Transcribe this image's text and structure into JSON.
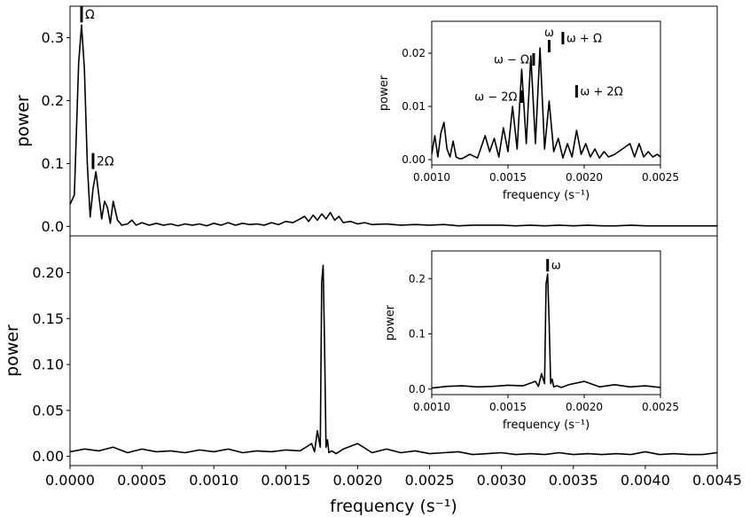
{
  "chart_data": [
    {
      "type": "line",
      "panel": "top",
      "xlabel": "",
      "ylabel": "power",
      "xlim": [
        0.0,
        0.0045
      ],
      "ylim": [
        -0.015,
        0.35
      ],
      "yticks": [
        0.0,
        0.1,
        0.2,
        0.3
      ],
      "ytick_labels": [
        "0.0",
        "0.1",
        "0.2",
        "0.3"
      ],
      "series": [
        {
          "x": [
            0.0,
            3e-05,
            6e-05,
            8e-05,
            0.0001,
            0.00012,
            0.00014,
            0.00016,
            0.00018,
            0.0002,
            0.00022,
            0.00024,
            0.00026,
            0.00028,
            0.0003,
            0.00033,
            0.00036,
            0.0004,
            0.00043,
            0.00046,
            0.0005,
            0.00055,
            0.0006,
            0.00065,
            0.0007,
            0.00075,
            0.0008,
            0.00085,
            0.0009,
            0.00095,
            0.001,
            0.00105,
            0.0011,
            0.00115,
            0.0012,
            0.00125,
            0.0013,
            0.00135,
            0.0014,
            0.00145,
            0.0015,
            0.00155,
            0.0016,
            0.00163,
            0.00166,
            0.00169,
            0.00172,
            0.00175,
            0.00178,
            0.00181,
            0.00184,
            0.00187,
            0.0019,
            0.00195,
            0.002,
            0.00205,
            0.0021,
            0.0022,
            0.0023,
            0.0024,
            0.0025,
            0.0026,
            0.0027,
            0.0028,
            0.0029,
            0.003,
            0.0031,
            0.0032,
            0.0033,
            0.0034,
            0.0035,
            0.0036,
            0.0037,
            0.0038,
            0.0039,
            0.004,
            0.0041,
            0.0042,
            0.0043,
            0.0044,
            0.0045
          ],
          "y": [
            0.035,
            0.05,
            0.26,
            0.32,
            0.25,
            0.1,
            0.015,
            0.06,
            0.087,
            0.05,
            0.012,
            0.04,
            0.03,
            0.005,
            0.04,
            0.01,
            0.002,
            0.004,
            0.01,
            0.002,
            0.006,
            0.002,
            0.005,
            0.002,
            0.004,
            0.001,
            0.004,
            0.002,
            0.004,
            0.001,
            0.005,
            0.002,
            0.006,
            0.002,
            0.005,
            0.003,
            0.004,
            0.002,
            0.006,
            0.003,
            0.008,
            0.006,
            0.012,
            0.016,
            0.008,
            0.018,
            0.01,
            0.02,
            0.012,
            0.022,
            0.01,
            0.016,
            0.006,
            0.008,
            0.004,
            0.006,
            0.003,
            0.004,
            0.002,
            0.003,
            0.002,
            0.003,
            0.001,
            0.002,
            0.002,
            0.002,
            0.001,
            0.002,
            0.001,
            0.002,
            0.001,
            0.002,
            0.001,
            0.001,
            0.002,
            0.001,
            0.001,
            0.001,
            0.001,
            0.001,
            0.001
          ]
        }
      ],
      "annotations": [
        {
          "text": "Ω",
          "x": 8e-05,
          "y": 0.32
        },
        {
          "text": "2Ω",
          "x": 0.00016,
          "y": 0.087
        }
      ],
      "inset": {
        "xlabel": "frequency (s⁻¹)",
        "ylabel": "power",
        "xlim": [
          0.001,
          0.0025
        ],
        "ylim": [
          -0.001,
          0.026
        ],
        "xticks": [
          0.001,
          0.0015,
          0.002,
          0.0025
        ],
        "xtick_labels": [
          "0.0010",
          "0.0015",
          "0.0020",
          "0.0025"
        ],
        "yticks": [
          0.0,
          0.01,
          0.02
        ],
        "ytick_labels": [
          "0.00",
          "0.01",
          "0.02"
        ],
        "series": [
          {
            "x": [
              0.001,
              0.00102,
              0.00104,
              0.00106,
              0.00108,
              0.0011,
              0.00112,
              0.00114,
              0.00116,
              0.00118,
              0.0012,
              0.00125,
              0.0013,
              0.00135,
              0.00138,
              0.00141,
              0.00144,
              0.00147,
              0.0015,
              0.00153,
              0.00156,
              0.00159,
              0.00162,
              0.00165,
              0.00168,
              0.00171,
              0.00174,
              0.00177,
              0.0018,
              0.00183,
              0.00186,
              0.00189,
              0.00192,
              0.00195,
              0.00198,
              0.00201,
              0.00204,
              0.00207,
              0.0021,
              0.00213,
              0.00216,
              0.0022,
              0.00225,
              0.0023,
              0.00233,
              0.00236,
              0.00239,
              0.00242,
              0.00245,
              0.00248,
              0.0025
            ],
            "y": [
              0.001,
              0.0045,
              0.0005,
              0.005,
              0.007,
              0.002,
              0.0005,
              0.0035,
              0.0005,
              0.0002,
              0.0002,
              0.001,
              0.0003,
              0.0045,
              0.0015,
              0.004,
              0.0005,
              0.006,
              0.0015,
              0.01,
              0.002,
              0.017,
              0.003,
              0.0195,
              0.003,
              0.021,
              0.002,
              0.011,
              0.0015,
              0.004,
              0.0003,
              0.003,
              0.0005,
              0.0055,
              0.001,
              0.003,
              0.0005,
              0.002,
              0.0003,
              0.0015,
              0.0005,
              0.001,
              0.002,
              0.003,
              0.0005,
              0.003,
              0.0005,
              0.0015,
              0.0005,
              0.001,
              0.0005
            ]
          }
        ],
        "annotations": [
          {
            "text": "ω",
            "x": 0.00177,
            "y": 0.0195
          },
          {
            "text": "ω − Ω",
            "x": 0.00168,
            "y": 0.017
          },
          {
            "text": "ω + Ω",
            "x": 0.00186,
            "y": 0.021
          },
          {
            "text": "ω − 2Ω",
            "x": 0.00159,
            "y": 0.01
          },
          {
            "text": "ω + 2Ω",
            "x": 0.00195,
            "y": 0.011
          }
        ]
      }
    },
    {
      "type": "line",
      "panel": "bottom",
      "xlabel": "frequency (s⁻¹)",
      "ylabel": "power",
      "xlim": [
        0.0,
        0.0045
      ],
      "ylim": [
        -0.01,
        0.24
      ],
      "xticks": [
        0.0,
        0.0005,
        0.001,
        0.0015,
        0.002,
        0.0025,
        0.003,
        0.0035,
        0.004,
        0.0045
      ],
      "xtick_labels": [
        "0.0000",
        "0.0005",
        "0.0010",
        "0.0015",
        "0.0020",
        "0.0025",
        "0.0030",
        "0.0035",
        "0.0040",
        "0.0045"
      ],
      "yticks": [
        0.0,
        0.05,
        0.1,
        0.15,
        0.2
      ],
      "ytick_labels": [
        "0.00",
        "0.05",
        "0.10",
        "0.15",
        "0.20"
      ],
      "series": [
        {
          "x": [
            0.0,
            0.0001,
            0.0002,
            0.0003,
            0.0004,
            0.0005,
            0.0006,
            0.0007,
            0.0008,
            0.0009,
            0.001,
            0.0011,
            0.0012,
            0.0013,
            0.0014,
            0.0015,
            0.0016,
            0.00168,
            0.0017,
            0.00172,
            0.00174,
            0.00175,
            0.00176,
            0.00177,
            0.00178,
            0.00179,
            0.0018,
            0.00182,
            0.00185,
            0.0019,
            0.002,
            0.0021,
            0.0022,
            0.0023,
            0.0024,
            0.0025,
            0.0026,
            0.0027,
            0.0028,
            0.0029,
            0.003,
            0.0031,
            0.0032,
            0.0033,
            0.0034,
            0.0035,
            0.0036,
            0.0037,
            0.0038,
            0.0039,
            0.004,
            0.0041,
            0.0042,
            0.0043,
            0.0044,
            0.0045
          ],
          "y": [
            0.005,
            0.008,
            0.006,
            0.01,
            0.004,
            0.008,
            0.005,
            0.006,
            0.004,
            0.007,
            0.005,
            0.008,
            0.004,
            0.006,
            0.005,
            0.007,
            0.006,
            0.014,
            0.005,
            0.028,
            0.01,
            0.19,
            0.208,
            0.12,
            0.01,
            0.018,
            0.004,
            0.006,
            0.003,
            0.008,
            0.014,
            0.004,
            0.008,
            0.004,
            0.006,
            0.003,
            0.004,
            0.005,
            0.002,
            0.003,
            0.004,
            0.002,
            0.003,
            0.002,
            0.004,
            0.002,
            0.003,
            0.002,
            0.003,
            0.002,
            0.005,
            0.002,
            0.003,
            0.002,
            0.002,
            0.004
          ]
        }
      ],
      "inset": {
        "xlabel": "frequency (s⁻¹)",
        "ylabel": "power",
        "xlim": [
          0.001,
          0.0025
        ],
        "ylim": [
          -0.01,
          0.25
        ],
        "xticks": [
          0.001,
          0.0015,
          0.002,
          0.0025
        ],
        "xtick_labels": [
          "0.0010",
          "0.0015",
          "0.0020",
          "0.0025"
        ],
        "yticks": [
          0.0,
          0.1,
          0.2
        ],
        "ytick_labels": [
          "0.0",
          "0.1",
          "0.2"
        ],
        "series": [
          {
            "x": [
              0.001,
              0.0011,
              0.0012,
              0.0013,
              0.0014,
              0.0015,
              0.0016,
              0.00168,
              0.0017,
              0.00172,
              0.00174,
              0.00175,
              0.00176,
              0.00177,
              0.00178,
              0.00179,
              0.0018,
              0.00182,
              0.00185,
              0.0019,
              0.002,
              0.0021,
              0.0022,
              0.0023,
              0.0024,
              0.0025
            ],
            "y": [
              0.002,
              0.005,
              0.006,
              0.004,
              0.005,
              0.007,
              0.006,
              0.014,
              0.005,
              0.028,
              0.01,
              0.19,
              0.208,
              0.12,
              0.01,
              0.018,
              0.004,
              0.006,
              0.003,
              0.008,
              0.014,
              0.004,
              0.008,
              0.004,
              0.006,
              0.003
            ]
          }
        ],
        "annotations": [
          {
            "text": "ω",
            "x": 0.00176,
            "y": 0.208
          }
        ]
      }
    }
  ]
}
